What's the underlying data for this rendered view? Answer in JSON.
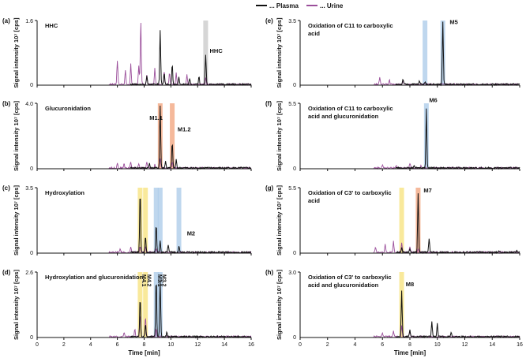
{
  "legend": [
    {
      "label": "... Plasma",
      "color": "#111111"
    },
    {
      "label": "... Urine",
      "color": "#9b4f9b"
    }
  ],
  "highlight_colors": {
    "gray": "#c8c8c8",
    "orange": "#f2a27a",
    "yellow": "#f7e27a",
    "blue": "#a9c9e8"
  },
  "chart_data": [
    {
      "type": "line",
      "panel": "(a)",
      "title": "HHC",
      "ymax_label": "1.6",
      "ylabel": "Signal intensity 10⁷ [cps]",
      "xlabel": "",
      "xlim": [
        0,
        16
      ],
      "x_ticks": [
        0,
        2,
        4,
        6,
        8,
        10,
        12,
        14,
        16
      ],
      "ylim": [
        0,
        1.6
      ],
      "bands": [
        {
          "x": 12.6,
          "color": "gray"
        }
      ],
      "annotations": [
        {
          "text": "HHC",
          "x": 12.9,
          "y": 0.8
        }
      ],
      "series": [
        {
          "color": "#9b4f9b",
          "peaks": [
            [
              6.0,
              0.6
            ],
            [
              6.6,
              0.35
            ],
            [
              7.0,
              0.5
            ],
            [
              7.6,
              0.45
            ],
            [
              7.75,
              1.6
            ],
            [
              8.2,
              0.25
            ],
            [
              8.8,
              0.4
            ],
            [
              9.5,
              0.35
            ],
            [
              9.9,
              0.3
            ],
            [
              10.4,
              0.3
            ],
            [
              11.2,
              0.25
            ],
            [
              12.6,
              0.15
            ]
          ]
        },
        {
          "color": "#111111",
          "peaks": [
            [
              8.2,
              0.2
            ],
            [
              9.2,
              1.35
            ],
            [
              9.5,
              0.3
            ],
            [
              10.1,
              0.5
            ],
            [
              10.6,
              0.2
            ],
            [
              11.4,
              0.15
            ],
            [
              12.1,
              0.2
            ],
            [
              12.6,
              0.75
            ]
          ]
        }
      ]
    },
    {
      "type": "line",
      "panel": "(b)",
      "title": "Glucuronidation",
      "ymax_label": "4.0",
      "ylabel": "Signal intensity 10⁷ [cps]",
      "xlabel": "",
      "xlim": [
        0,
        16
      ],
      "x_ticks": [
        0,
        2,
        4,
        6,
        8,
        10,
        12,
        14,
        16
      ],
      "ylim": [
        0,
        4.0
      ],
      "bands": [
        {
          "x": 9.2,
          "color": "orange"
        },
        {
          "x": 10.1,
          "color": "orange"
        }
      ],
      "annotations": [
        {
          "text": "M1.1",
          "x": 8.4,
          "y": 3.0
        },
        {
          "text": "M1.2",
          "x": 10.5,
          "y": 2.3
        }
      ],
      "series": [
        {
          "color": "#9b4f9b",
          "peaks": [
            [
              6.0,
              0.3
            ],
            [
              6.5,
              0.25
            ],
            [
              7.0,
              0.4
            ],
            [
              7.6,
              0.3
            ],
            [
              8.2,
              0.35
            ],
            [
              8.8,
              0.2
            ],
            [
              9.2,
              0.6
            ],
            [
              10.1,
              0.4
            ]
          ]
        },
        {
          "color": "#111111",
          "peaks": [
            [
              8.4,
              0.3
            ],
            [
              9.2,
              3.8
            ],
            [
              9.6,
              0.4
            ],
            [
              10.1,
              1.6
            ],
            [
              10.4,
              0.5
            ]
          ]
        }
      ]
    },
    {
      "type": "line",
      "panel": "(c)",
      "title": "Hydroxylation",
      "ymax_label": "3.5",
      "ylabel": "Signal intensity 10⁷ [cps]",
      "xlabel": "",
      "xlim": [
        0,
        16
      ],
      "x_ticks": [
        0,
        2,
        4,
        6,
        8,
        10,
        12,
        14,
        16
      ],
      "ylim": [
        0,
        3.5
      ],
      "bands": [
        {
          "x": 7.7,
          "color": "yellow"
        },
        {
          "x": 8.1,
          "color": "yellow"
        },
        {
          "x": 8.9,
          "color": "blue"
        },
        {
          "x": 9.2,
          "color": "blue"
        },
        {
          "x": 10.6,
          "color": "blue"
        }
      ],
      "annotations": [
        {
          "text": "M2",
          "x": 11.2,
          "y": 0.95
        }
      ],
      "series": [
        {
          "color": "#9b4f9b",
          "peaks": [
            [
              6.2,
              0.2
            ],
            [
              7.0,
              0.3
            ],
            [
              7.7,
              0.35
            ],
            [
              8.1,
              0.3
            ],
            [
              8.9,
              0.2
            ]
          ]
        },
        {
          "color": "#111111",
          "peaks": [
            [
              7.7,
              3.3
            ],
            [
              8.1,
              0.9
            ],
            [
              8.9,
              1.5
            ],
            [
              9.2,
              0.6
            ],
            [
              9.8,
              0.4
            ],
            [
              10.6,
              0.35
            ]
          ]
        }
      ]
    },
    {
      "type": "line",
      "panel": "(d)",
      "title": "Hydroxylation and glucuronidation",
      "ymax_label": "2.6",
      "ylabel": "Signal intensity 10⁷ [cps]",
      "xlabel": "Time [min]",
      "xlim": [
        0,
        16
      ],
      "x_ticks": [
        0,
        2,
        4,
        6,
        8,
        10,
        12,
        14,
        16
      ],
      "ylim": [
        0,
        2.6
      ],
      "bands": [
        {
          "x": 7.7,
          "color": "yellow"
        },
        {
          "x": 8.1,
          "color": "yellow"
        },
        {
          "x": 8.9,
          "color": "blue"
        },
        {
          "x": 9.2,
          "color": "blue"
        }
      ],
      "annotations": [
        {
          "text": "M4.1",
          "x": 7.7,
          "rotated": true
        },
        {
          "text": "M4.2",
          "x": 8.1,
          "rotated": true
        },
        {
          "text": "M3.1",
          "x": 8.9,
          "rotated": true
        },
        {
          "text": "M3.2",
          "x": 9.2,
          "rotated": true
        }
      ],
      "series": [
        {
          "color": "#9b4f9b",
          "peaks": [
            [
              6.5,
              0.2
            ],
            [
              7.3,
              0.3
            ],
            [
              7.7,
              0.9
            ],
            [
              8.1,
              0.8
            ],
            [
              8.9,
              0.3
            ]
          ]
        },
        {
          "color": "#111111",
          "peaks": [
            [
              7.7,
              1.6
            ],
            [
              8.1,
              0.5
            ],
            [
              8.9,
              2.4
            ],
            [
              9.2,
              2.3
            ],
            [
              9.7,
              0.2
            ]
          ]
        }
      ]
    },
    {
      "type": "line",
      "panel": "(e)",
      "title": "Oxidation of C11 to carboxylic acid",
      "ymax_label": "3.5",
      "ylabel": "Signal intensity 10⁷ [cps]",
      "xlabel": "",
      "xlim": [
        0,
        16
      ],
      "x_ticks": [
        0,
        2,
        4,
        6,
        8,
        10,
        12,
        14,
        16
      ],
      "ylim": [
        0,
        3.5
      ],
      "bands": [
        {
          "x": 9.1,
          "color": "blue"
        },
        {
          "x": 10.4,
          "color": "blue"
        }
      ],
      "annotations": [
        {
          "text": "M5",
          "x": 10.9,
          "y": 3.3
        }
      ],
      "series": [
        {
          "color": "#9b4f9b",
          "peaks": [
            [
              5.8,
              0.4
            ],
            [
              6.5,
              0.25
            ],
            [
              7.5,
              0.2
            ]
          ]
        },
        {
          "color": "#111111",
          "peaks": [
            [
              7.5,
              0.3
            ],
            [
              8.7,
              0.2
            ],
            [
              9.1,
              0.15
            ],
            [
              10.4,
              3.4
            ]
          ]
        }
      ]
    },
    {
      "type": "line",
      "panel": "(f)",
      "title": "Oxidation of C11 to carboxylic acid and glucuronidation",
      "ymax_label": "5.5",
      "ylabel": "Signal intensity 10⁷ [cps]",
      "xlabel": "",
      "xlim": [
        0,
        16
      ],
      "x_ticks": [
        0,
        2,
        4,
        6,
        8,
        10,
        12,
        14,
        16
      ],
      "ylim": [
        0,
        5.5
      ],
      "bands": [
        {
          "x": 9.2,
          "color": "blue"
        }
      ],
      "annotations": [
        {
          "text": "M6",
          "x": 9.4,
          "y": 5.6
        }
      ],
      "series": [
        {
          "color": "#9b4f9b",
          "peaks": [
            [
              6.0,
              0.3
            ],
            [
              7.0,
              0.25
            ],
            [
              8.0,
              0.4
            ],
            [
              8.8,
              0.2
            ]
          ]
        },
        {
          "color": "#111111",
          "peaks": [
            [
              8.3,
              0.2
            ],
            [
              9.2,
              5.0
            ]
          ]
        }
      ]
    },
    {
      "type": "line",
      "panel": "(g)",
      "title": "Oxidation of C3' to carboxylic acid",
      "ymax_label": "5.5",
      "ylabel": "Signal intensity 10⁷ [cps]",
      "xlabel": "",
      "xlim": [
        0,
        16
      ],
      "x_ticks": [
        0,
        2,
        4,
        6,
        8,
        10,
        12,
        14,
        16
      ],
      "ylim": [
        0,
        5.5
      ],
      "bands": [
        {
          "x": 7.4,
          "color": "yellow"
        },
        {
          "x": 8.6,
          "color": "orange"
        }
      ],
      "annotations": [
        {
          "text": "M7",
          "x": 9.0,
          "y": 5.1
        }
      ],
      "series": [
        {
          "color": "#9b4f9b",
          "peaks": [
            [
              5.5,
              0.4
            ],
            [
              6.2,
              0.7
            ],
            [
              6.8,
              0.9
            ],
            [
              7.4,
              0.8
            ],
            [
              8.0,
              0.5
            ],
            [
              8.6,
              0.3
            ]
          ]
        },
        {
          "color": "#111111",
          "peaks": [
            [
              7.4,
              0.4
            ],
            [
              8.0,
              0.3
            ],
            [
              8.6,
              4.9
            ],
            [
              9.4,
              1.2
            ],
            [
              14.5,
              0.15
            ],
            [
              15.8,
              0.2
            ]
          ]
        }
      ]
    },
    {
      "type": "line",
      "panel": "(h)",
      "title": "Oxidation of C3' to carboxylic acid and glucuronidation",
      "ymax_label": "3.0",
      "ylabel": "Signal intensity 10⁷ [cps]",
      "xlabel": "Time [min]",
      "xlim": [
        0,
        16
      ],
      "x_ticks": [
        0,
        2,
        4,
        6,
        8,
        10,
        12,
        14,
        16
      ],
      "ylim": [
        0,
        3.0
      ],
      "bands": [
        {
          "x": 7.4,
          "color": "yellow"
        }
      ],
      "annotations": [
        {
          "text": "M8",
          "x": 7.7,
          "y": 2.35
        }
      ],
      "series": [
        {
          "color": "#9b4f9b",
          "peaks": [
            [
              6.0,
              0.2
            ],
            [
              6.8,
              0.3
            ],
            [
              7.4,
              0.5
            ],
            [
              8.0,
              0.25
            ]
          ]
        },
        {
          "color": "#111111",
          "peaks": [
            [
              7.4,
              2.1
            ],
            [
              8.0,
              0.3
            ],
            [
              9.6,
              0.7
            ],
            [
              10.0,
              0.6
            ],
            [
              11.0,
              0.2
            ]
          ]
        }
      ]
    }
  ]
}
